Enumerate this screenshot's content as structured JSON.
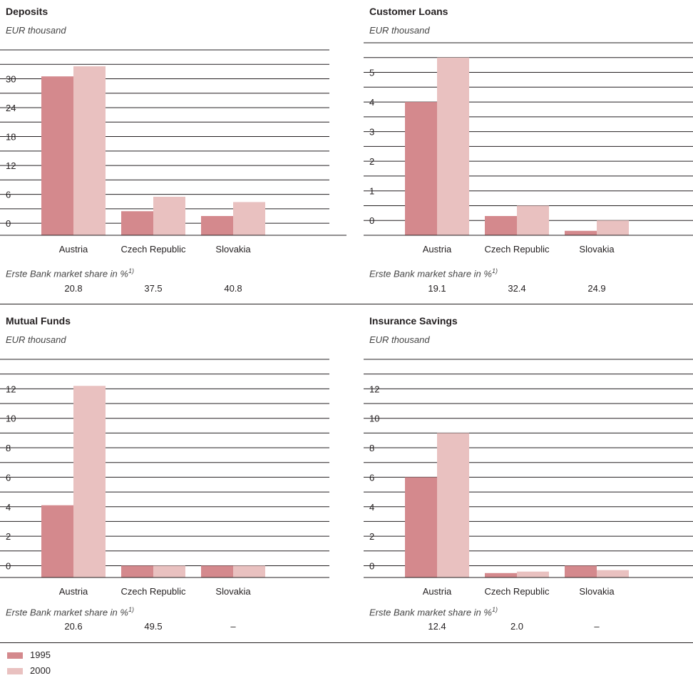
{
  "colors": {
    "y1995": "#d4898d",
    "y2000": "#e9c1c0",
    "line": "#231f20"
  },
  "legend": [
    {
      "label": "1995",
      "color": "#d4898d"
    },
    {
      "label": "2000",
      "color": "#e9c1c0"
    }
  ],
  "market_share_label": "Erste Bank market share in %",
  "market_share_footnote": "1)",
  "panels": [
    {
      "title": "Deposits",
      "unit": "EUR thousand",
      "market_share": [
        "20.8",
        "37.5",
        "40.8"
      ]
    },
    {
      "title": "Customer Loans",
      "unit": "EUR thousand",
      "market_share": [
        "19.1",
        "32.4",
        "24.9"
      ]
    },
    {
      "title": "Mutual Funds",
      "unit": "EUR thousand",
      "market_share": [
        "20.6",
        "49.5",
        "–"
      ]
    },
    {
      "title": "Insurance Savings",
      "unit": "EUR thousand",
      "market_share": [
        "12.4",
        "2.0",
        "–"
      ]
    }
  ],
  "chart_data": [
    {
      "type": "bar",
      "title": "Deposits",
      "ylabel": "EUR thousand",
      "categories": [
        "Austria",
        "Czech Republic",
        "Slovakia"
      ],
      "yticks": [
        0,
        6,
        12,
        18,
        24,
        30
      ],
      "ylim": [
        -2.5,
        36
      ],
      "series": [
        {
          "name": "1995",
          "values": [
            30.5,
            2.5,
            1.5
          ]
        },
        {
          "name": "2000",
          "values": [
            32.6,
            5.5,
            4.4
          ]
        }
      ]
    },
    {
      "type": "bar",
      "title": "Customer Loans",
      "ylabel": "EUR thousand",
      "categories": [
        "Austria",
        "Czech Republic",
        "Slovakia"
      ],
      "yticks": [
        0,
        1,
        2,
        3,
        4,
        5
      ],
      "ylim": [
        -0.5,
        6
      ],
      "series": [
        {
          "name": "1995",
          "values": [
            4.0,
            0.15,
            -0.35
          ]
        },
        {
          "name": "2000",
          "values": [
            5.5,
            0.5,
            0.0
          ]
        }
      ]
    },
    {
      "type": "bar",
      "title": "Mutual Funds",
      "ylabel": "EUR thousand",
      "categories": [
        "Austria",
        "Czech Republic",
        "Slovakia"
      ],
      "yticks": [
        0,
        2,
        4,
        6,
        8,
        10,
        12
      ],
      "ylim": [
        -0.8,
        14
      ],
      "series": [
        {
          "name": "1995",
          "values": [
            4.1,
            0.0,
            0.0
          ]
        },
        {
          "name": "2000",
          "values": [
            12.2,
            0.0,
            0.0
          ]
        }
      ]
    },
    {
      "type": "bar",
      "title": "Insurance Savings",
      "ylabel": "EUR thousand",
      "categories": [
        "Austria",
        "Czech Republic",
        "Slovakia"
      ],
      "yticks": [
        0,
        2,
        4,
        6,
        8,
        10,
        12
      ],
      "ylim": [
        -0.8,
        14
      ],
      "series": [
        {
          "name": "1995",
          "values": [
            6.0,
            -0.5,
            0.0
          ]
        },
        {
          "name": "2000",
          "values": [
            9.0,
            -0.4,
            -0.3
          ]
        }
      ]
    }
  ]
}
